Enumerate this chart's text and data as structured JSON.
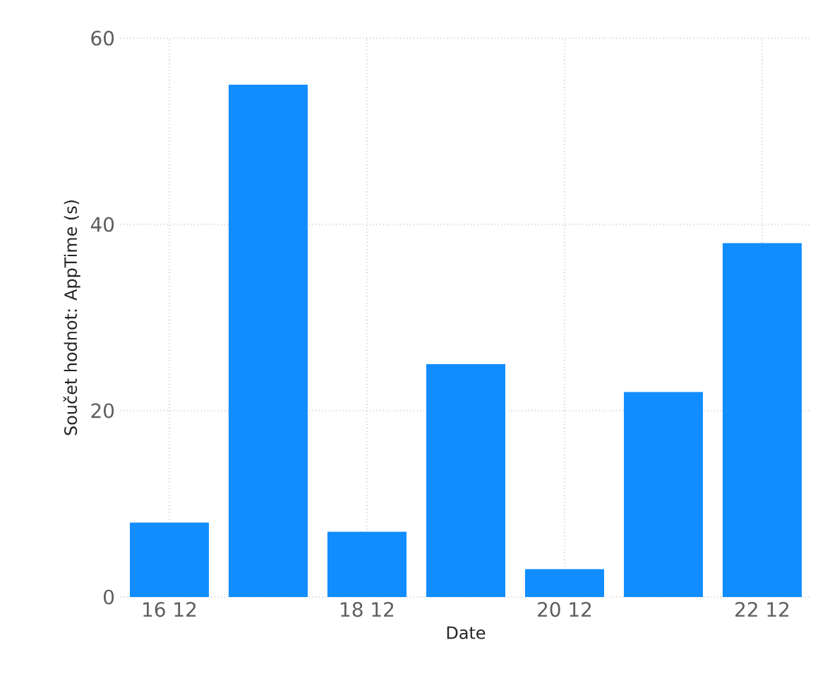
{
  "chart_data": {
    "type": "bar",
    "xlabel": "Date",
    "ylabel": "Součet hodnot: AppTime (s)",
    "categories": [
      "16 12",
      null,
      "18 12",
      null,
      "20 12",
      null,
      "22 12"
    ],
    "values": [
      8,
      55,
      7,
      25,
      3,
      22,
      38
    ],
    "color": "#118dff",
    "ylim": [
      0,
      60
    ],
    "yticks": [
      0,
      20,
      40,
      60
    ],
    "grid": true
  }
}
